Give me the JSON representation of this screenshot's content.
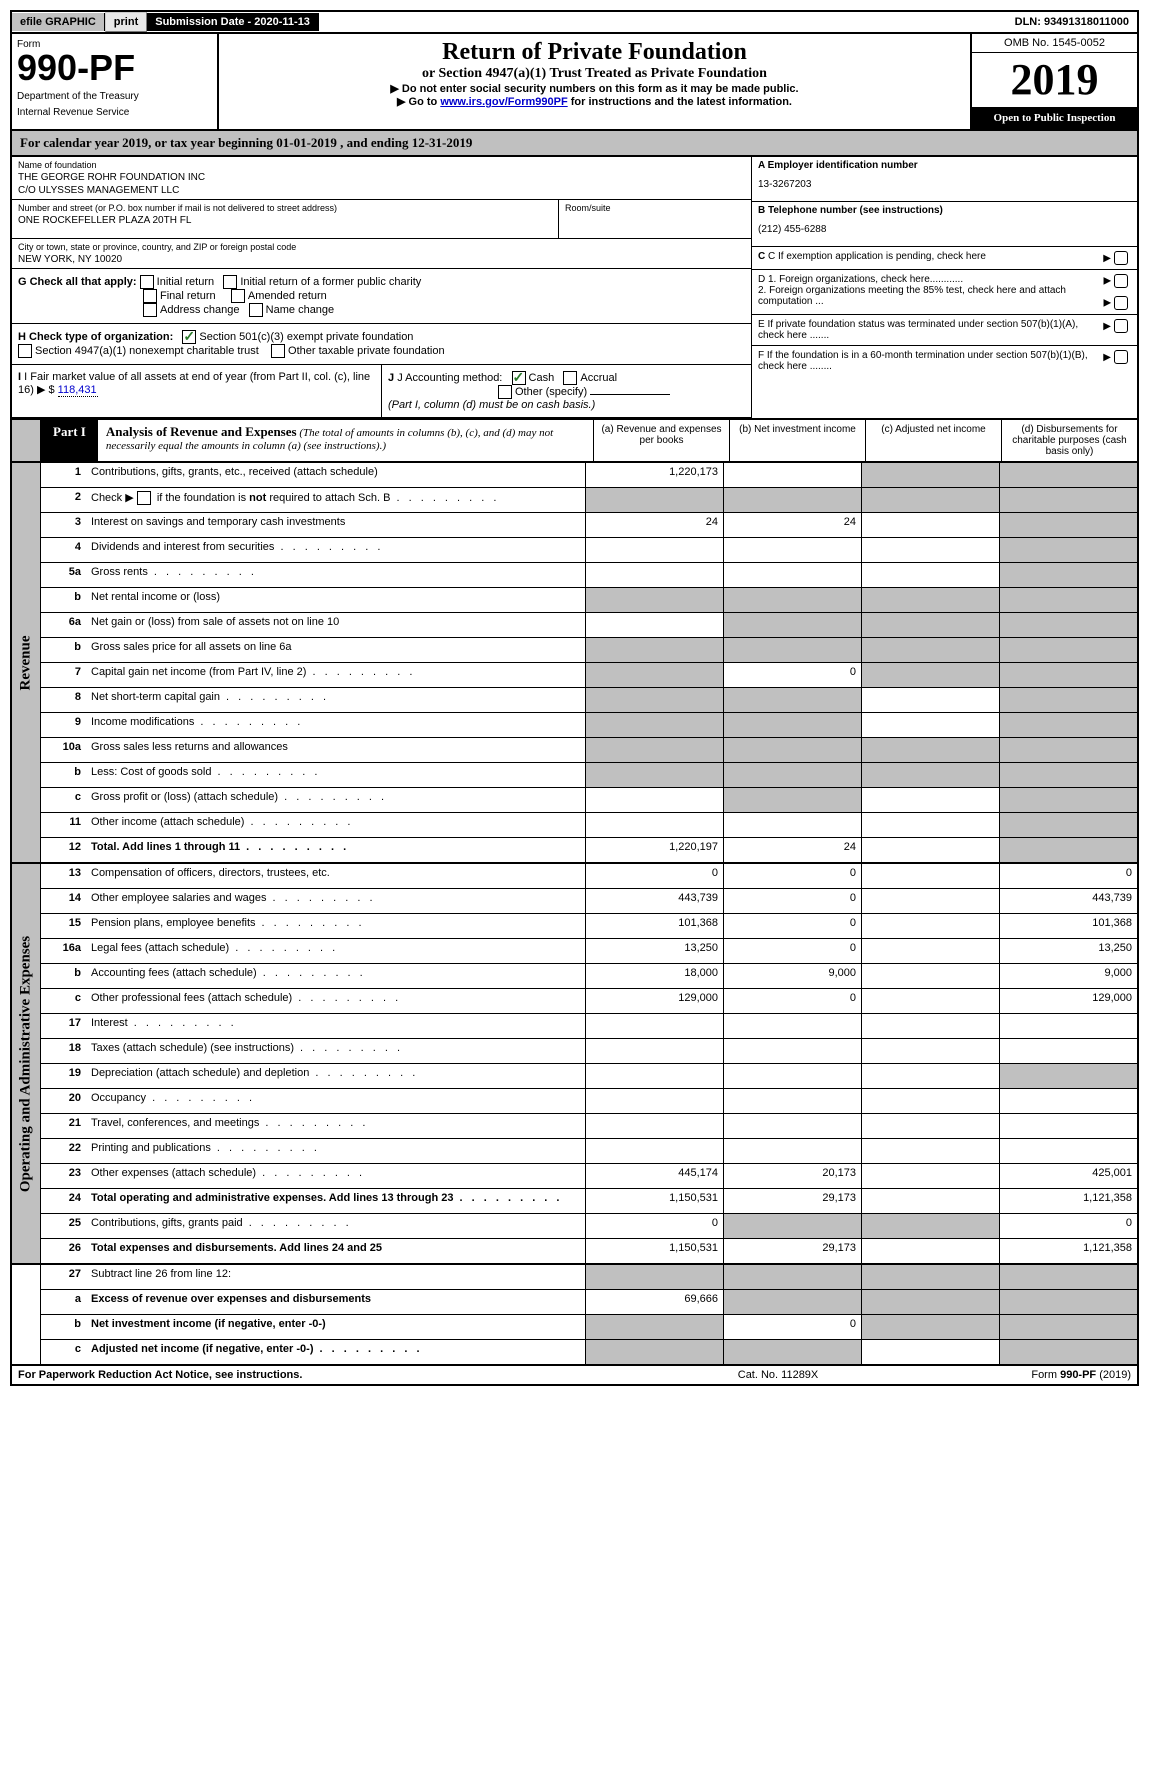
{
  "top": {
    "efile": "efile GRAPHIC",
    "print": "print",
    "submission": "Submission Date - 2020-11-13",
    "dln": "DLN: 93491318011000"
  },
  "header": {
    "form_label": "Form",
    "form_number": "990-PF",
    "dept1": "Department of the Treasury",
    "dept2": "Internal Revenue Service",
    "title": "Return of Private Foundation",
    "subtitle": "or Section 4947(a)(1) Trust Treated as Private Foundation",
    "warning1": "▶ Do not enter social security numbers on this form as it may be made public.",
    "warning2": "▶ Go to ",
    "warning2_link": "www.irs.gov/Form990PF",
    "warning2_suffix": " for instructions and the latest information.",
    "omb": "OMB No. 1545-0052",
    "year": "2019",
    "open": "Open to Public Inspection"
  },
  "calendar": "For calendar year 2019, or tax year beginning 01-01-2019                                   , and ending 12-31-2019",
  "entity": {
    "name_label": "Name of foundation",
    "name1": "THE GEORGE ROHR FOUNDATION INC",
    "name2": "C/O ULYSSES MANAGEMENT LLC",
    "address_label": "Number and street (or P.O. box number if mail is not delivered to street address)",
    "address": "ONE ROCKEFELLER PLAZA 20TH FL",
    "room_label": "Room/suite",
    "city_label": "City or town, state or province, country, and ZIP or foreign postal code",
    "city": "NEW YORK, NY  10020",
    "ein_label": "A Employer identification number",
    "ein": "13-3267203",
    "phone_label": "B Telephone number (see instructions)",
    "phone": "(212) 455-6288",
    "c_label": "C If exemption application is pending, check here",
    "d1": "D 1. Foreign organizations, check here............",
    "d2": "2. Foreign organizations meeting the 85% test, check here and attach computation ...",
    "e_label": "E  If private foundation status was terminated under section 507(b)(1)(A), check here .......",
    "f_label": "F  If the foundation is in a 60-month termination under section 507(b)(1)(B), check here ........"
  },
  "section_g": {
    "label": "G Check all that apply:",
    "opts": [
      "Initial return",
      "Initial return of a former public charity",
      "Final return",
      "Amended return",
      "Address change",
      "Name change"
    ]
  },
  "section_h": {
    "label": "H Check type of organization:",
    "opt1": "Section 501(c)(3) exempt private foundation",
    "opt2": "Section 4947(a)(1) nonexempt charitable trust",
    "opt3": "Other taxable private foundation"
  },
  "section_i": {
    "label": "I Fair market value of all assets at end of year (from Part II, col. (c), line 16)",
    "value": "118,431"
  },
  "section_j": {
    "label": "J Accounting method:",
    "opt1": "Cash",
    "opt2": "Accrual",
    "opt3": "Other (specify)",
    "note": "(Part I, column (d) must be on cash basis.)"
  },
  "part1": {
    "label": "Part I",
    "title": "Analysis of Revenue and Expenses",
    "desc": "(The total of amounts in columns (b), (c), and (d) may not necessarily equal the amounts in column (a) (see instructions).)",
    "col_a": "(a)  Revenue and expenses per books",
    "col_b": "(b)  Net investment income",
    "col_c": "(c)  Adjusted net income",
    "col_d": "(d)  Disbursements for charitable purposes (cash basis only)"
  },
  "revenue": {
    "label": "Revenue",
    "rows": [
      {
        "n": "1",
        "desc": "Contributions, gifts, grants, etc., received (attach schedule)",
        "a": "1,220,173",
        "b": "",
        "c": "gray",
        "d": "gray"
      },
      {
        "n": "2",
        "desc": "Check ▶ ☐ if the foundation is not required to attach Sch. B",
        "dots": true,
        "a": "gray",
        "b": "gray",
        "c": "gray",
        "d": "gray"
      },
      {
        "n": "3",
        "desc": "Interest on savings and temporary cash investments",
        "a": "24",
        "b": "24",
        "c": "",
        "d": "gray"
      },
      {
        "n": "4",
        "desc": "Dividends and interest from securities",
        "dots": true,
        "a": "",
        "b": "",
        "c": "",
        "d": "gray"
      },
      {
        "n": "5a",
        "desc": "Gross rents",
        "dots": true,
        "a": "",
        "b": "",
        "c": "",
        "d": "gray"
      },
      {
        "n": "b",
        "desc": "Net rental income or (loss)",
        "a": "gray",
        "b": "gray",
        "c": "gray",
        "d": "gray"
      },
      {
        "n": "6a",
        "desc": "Net gain or (loss) from sale of assets not on line 10",
        "a": "",
        "b": "gray",
        "c": "gray",
        "d": "gray"
      },
      {
        "n": "b",
        "desc": "Gross sales price for all assets on line 6a",
        "a": "gray",
        "b": "gray",
        "c": "gray",
        "d": "gray"
      },
      {
        "n": "7",
        "desc": "Capital gain net income (from Part IV, line 2)",
        "dots": true,
        "a": "gray",
        "b": "0",
        "c": "gray",
        "d": "gray"
      },
      {
        "n": "8",
        "desc": "Net short-term capital gain",
        "dots": true,
        "a": "gray",
        "b": "gray",
        "c": "",
        "d": "gray"
      },
      {
        "n": "9",
        "desc": "Income modifications",
        "dots": true,
        "a": "gray",
        "b": "gray",
        "c": "",
        "d": "gray"
      },
      {
        "n": "10a",
        "desc": "Gross sales less returns and allowances",
        "a": "gray",
        "b": "gray",
        "c": "gray",
        "d": "gray"
      },
      {
        "n": "b",
        "desc": "Less: Cost of goods sold",
        "dots": true,
        "a": "gray",
        "b": "gray",
        "c": "gray",
        "d": "gray"
      },
      {
        "n": "c",
        "desc": "Gross profit or (loss) (attach schedule)",
        "dots": true,
        "a": "",
        "b": "gray",
        "c": "",
        "d": "gray"
      },
      {
        "n": "11",
        "desc": "Other income (attach schedule)",
        "dots": true,
        "a": "",
        "b": "",
        "c": "",
        "d": "gray"
      },
      {
        "n": "12",
        "desc": "Total. Add lines 1 through 11",
        "bold": true,
        "dots": true,
        "a": "1,220,197",
        "b": "24",
        "c": "",
        "d": "gray"
      }
    ]
  },
  "expenses": {
    "label": "Operating and Administrative Expenses",
    "rows": [
      {
        "n": "13",
        "desc": "Compensation of officers, directors, trustees, etc.",
        "a": "0",
        "b": "0",
        "c": "",
        "d": "0"
      },
      {
        "n": "14",
        "desc": "Other employee salaries and wages",
        "dots": true,
        "a": "443,739",
        "b": "0",
        "c": "",
        "d": "443,739"
      },
      {
        "n": "15",
        "desc": "Pension plans, employee benefits",
        "dots": true,
        "a": "101,368",
        "b": "0",
        "c": "",
        "d": "101,368"
      },
      {
        "n": "16a",
        "desc": "Legal fees (attach schedule)",
        "dots": true,
        "a": "13,250",
        "b": "0",
        "c": "",
        "d": "13,250"
      },
      {
        "n": "b",
        "desc": "Accounting fees (attach schedule)",
        "dots": true,
        "a": "18,000",
        "b": "9,000",
        "c": "",
        "d": "9,000"
      },
      {
        "n": "c",
        "desc": "Other professional fees (attach schedule)",
        "dots": true,
        "a": "129,000",
        "b": "0",
        "c": "",
        "d": "129,000"
      },
      {
        "n": "17",
        "desc": "Interest",
        "dots": true,
        "a": "",
        "b": "",
        "c": "",
        "d": ""
      },
      {
        "n": "18",
        "desc": "Taxes (attach schedule) (see instructions)",
        "dots": true,
        "a": "",
        "b": "",
        "c": "",
        "d": ""
      },
      {
        "n": "19",
        "desc": "Depreciation (attach schedule) and depletion",
        "dots": true,
        "a": "",
        "b": "",
        "c": "",
        "d": "gray"
      },
      {
        "n": "20",
        "desc": "Occupancy",
        "dots": true,
        "a": "",
        "b": "",
        "c": "",
        "d": ""
      },
      {
        "n": "21",
        "desc": "Travel, conferences, and meetings",
        "dots": true,
        "a": "",
        "b": "",
        "c": "",
        "d": ""
      },
      {
        "n": "22",
        "desc": "Printing and publications",
        "dots": true,
        "a": "",
        "b": "",
        "c": "",
        "d": ""
      },
      {
        "n": "23",
        "desc": "Other expenses (attach schedule)",
        "dots": true,
        "a": "445,174",
        "b": "20,173",
        "c": "",
        "d": "425,001"
      },
      {
        "n": "24",
        "desc": "Total operating and administrative expenses. Add lines 13 through 23",
        "bold": true,
        "dots": true,
        "a": "1,150,531",
        "b": "29,173",
        "c": "",
        "d": "1,121,358"
      },
      {
        "n": "25",
        "desc": "Contributions, gifts, grants paid",
        "dots": true,
        "a": "0",
        "b": "gray",
        "c": "gray",
        "d": "0"
      },
      {
        "n": "26",
        "desc": "Total expenses and disbursements. Add lines 24 and 25",
        "bold": true,
        "a": "1,150,531",
        "b": "29,173",
        "c": "",
        "d": "1,121,358"
      }
    ]
  },
  "subtract": {
    "rows": [
      {
        "n": "27",
        "desc": "Subtract line 26 from line 12:",
        "a": "gray",
        "b": "gray",
        "c": "gray",
        "d": "gray"
      },
      {
        "n": "a",
        "desc": "Excess of revenue over expenses and disbursements",
        "bold": true,
        "a": "69,666",
        "b": "gray",
        "c": "gray",
        "d": "gray"
      },
      {
        "n": "b",
        "desc": "Net investment income (if negative, enter -0-)",
        "bold": true,
        "a": "gray",
        "b": "0",
        "c": "gray",
        "d": "gray"
      },
      {
        "n": "c",
        "desc": "Adjusted net income (if negative, enter -0-)",
        "bold": true,
        "dots": true,
        "a": "gray",
        "b": "gray",
        "c": "",
        "d": "gray"
      }
    ]
  },
  "footer": {
    "left": "For Paperwork Reduction Act Notice, see instructions.",
    "center": "Cat. No. 11289X",
    "right": "Form 990-PF (2019)"
  }
}
